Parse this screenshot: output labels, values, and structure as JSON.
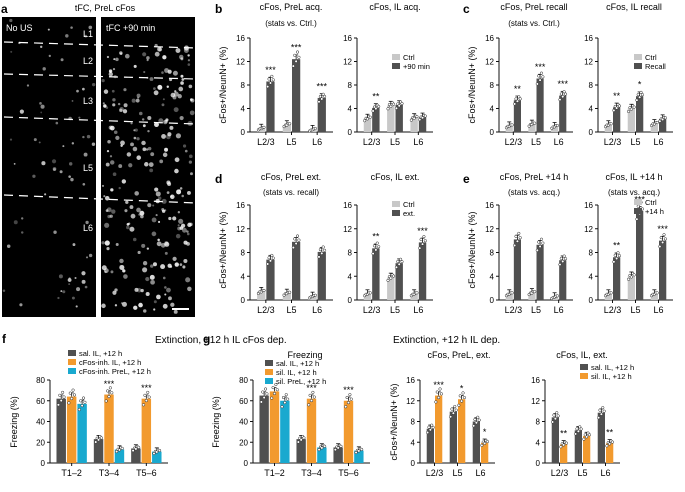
{
  "colors": {
    "dark": "#505050",
    "light": "#c8c8c8",
    "orange": "#f29a2e",
    "cyan": "#19a9cf",
    "axis": "#111111"
  },
  "panel_a": {
    "letter": "a",
    "title": "tFC, PreL cFos",
    "left_label": "No US",
    "right_label": "tFC +90 min",
    "layers": [
      "L1",
      "L2",
      "L3",
      "L5",
      "L6"
    ]
  },
  "row_texts": {
    "f_title": "Extinction, +12 h IL cFos dep.",
    "g_title": "Extinction, +12 h IL dep.",
    "freezing_subtitle": "Freezing"
  },
  "chart_data": [
    {
      "id": "b1",
      "letter": "b",
      "type": "bar",
      "title": "cFos, PreL acq.",
      "subtitle": "(stats vs. Ctrl.)",
      "ylabel": "cFos+/NeunN+ (%)",
      "ylim": [
        0,
        16
      ],
      "yticks": [
        0,
        4,
        8,
        12,
        16
      ],
      "categories": [
        "L2/3",
        "L5",
        "L6"
      ],
      "series": [
        {
          "name": "Ctrl",
          "color": "light",
          "values": [
            0.6,
            1.2,
            0.4
          ]
        },
        {
          "name": "+90 min",
          "color": "dark",
          "values": [
            8.6,
            12.4,
            5.8
          ]
        }
      ],
      "stars": [
        {
          "cat": 0,
          "series": 1,
          "text": "***"
        },
        {
          "cat": 1,
          "series": 1,
          "text": "***"
        },
        {
          "cat": 2,
          "series": 1,
          "text": "***"
        }
      ]
    },
    {
      "id": "b2",
      "type": "bar",
      "title": "cFos, IL acq.",
      "ylim": [
        0,
        16
      ],
      "yticks": [
        0,
        4,
        8,
        12,
        16
      ],
      "categories": [
        "L2/3",
        "L5",
        "L6"
      ],
      "series": [
        {
          "name": "Ctrl",
          "color": "light",
          "values": [
            2.3,
            4.5,
            2.4
          ]
        },
        {
          "name": "+90 min",
          "color": "dark",
          "values": [
            4.1,
            4.6,
            2.5
          ]
        }
      ],
      "legend": [
        "Ctrl",
        "+90 min"
      ],
      "stars": [
        {
          "cat": 0,
          "series": 1,
          "text": "**"
        }
      ]
    },
    {
      "id": "c1",
      "letter": "c",
      "type": "bar",
      "title": "cFos, PreL recall",
      "subtitle": "(stats vs. Ctrl.)",
      "ylabel": "cFos+/NeunN+ (%)",
      "ylim": [
        0,
        16
      ],
      "yticks": [
        0,
        4,
        8,
        12,
        16
      ],
      "categories": [
        "L2/3",
        "L5",
        "L6"
      ],
      "series": [
        {
          "name": "Ctrl",
          "color": "light",
          "values": [
            1.0,
            1.3,
            0.9
          ]
        },
        {
          "name": "Recall",
          "color": "dark",
          "values": [
            5.4,
            9.1,
            6.2
          ]
        }
      ],
      "stars": [
        {
          "cat": 0,
          "series": 1,
          "text": "**"
        },
        {
          "cat": 1,
          "series": 1,
          "text": "***"
        },
        {
          "cat": 2,
          "series": 1,
          "text": "***"
        }
      ]
    },
    {
      "id": "c2",
      "type": "bar",
      "title": "cFos, IL recall",
      "ylim": [
        0,
        16
      ],
      "yticks": [
        0,
        4,
        8,
        12,
        16
      ],
      "categories": [
        "L2/3",
        "L5",
        "L6"
      ],
      "series": [
        {
          "name": "Ctrl",
          "color": "light",
          "values": [
            1.2,
            4.0,
            1.4
          ]
        },
        {
          "name": "Recall",
          "color": "dark",
          "values": [
            4.2,
            6.1,
            2.2
          ]
        }
      ],
      "legend": [
        "Ctrl",
        "Recall"
      ],
      "stars": [
        {
          "cat": 0,
          "series": 1,
          "text": "**"
        },
        {
          "cat": 1,
          "series": 1,
          "text": "*"
        }
      ]
    },
    {
      "id": "d1",
      "letter": "d",
      "type": "bar",
      "title": "cFos, PreL ext.",
      "subtitle": "(stats vs. recall)",
      "ylabel": "cFos+/NeunN+ (%)",
      "ylim": [
        0,
        16
      ],
      "yticks": [
        0,
        4,
        8,
        12,
        16
      ],
      "categories": [
        "L2/3",
        "L5",
        "L6"
      ],
      "series": [
        {
          "name": "Ctrl",
          "color": "light",
          "values": [
            1.4,
            1.1,
            0.6
          ]
        },
        {
          "name": "ext.",
          "color": "dark",
          "values": [
            6.8,
            9.8,
            8.1
          ]
        }
      ],
      "stars": []
    },
    {
      "id": "d2",
      "type": "bar",
      "title": "cFos, IL ext.",
      "ylim": [
        0,
        16
      ],
      "yticks": [
        0,
        4,
        8,
        12,
        16
      ],
      "categories": [
        "L2/3",
        "L5",
        "L6"
      ],
      "series": [
        {
          "name": "Ctrl",
          "color": "light",
          "values": [
            1.0,
            3.8,
            1.0
          ]
        },
        {
          "name": "ext.",
          "color": "dark",
          "values": [
            8.7,
            6.2,
            9.7
          ]
        }
      ],
      "legend": [
        "Ctrl",
        "ext."
      ],
      "stars": [
        {
          "cat": 0,
          "series": 1,
          "text": "**"
        },
        {
          "cat": 2,
          "series": 1,
          "text": "***"
        }
      ]
    },
    {
      "id": "e1",
      "letter": "e",
      "type": "bar",
      "title": "cFos, PreL +14 h",
      "subtitle": "(stats vs. acq.)",
      "ylabel": "cFos+/NeunN+ (%)",
      "ylim": [
        0,
        16
      ],
      "yticks": [
        0,
        4,
        8,
        12,
        16
      ],
      "categories": [
        "L2/3",
        "L5",
        "L6"
      ],
      "series": [
        {
          "name": "Ctrl",
          "color": "light",
          "values": [
            1.0,
            1.2,
            0.5
          ]
        },
        {
          "name": "+14 h",
          "color": "dark",
          "values": [
            10.2,
            9.3,
            6.7
          ]
        }
      ],
      "stars": []
    },
    {
      "id": "e2",
      "type": "bar",
      "title": "cFos, IL +14 h",
      "subtitle": "(stats vs. acq.)",
      "ylim": [
        0,
        16
      ],
      "yticks": [
        0,
        4,
        8,
        12,
        16
      ],
      "categories": [
        "L2/3",
        "L5",
        "L6"
      ],
      "series": [
        {
          "name": "Ctrl",
          "color": "light",
          "values": [
            1.0,
            4.0,
            1.0
          ]
        },
        {
          "name": "+14 h",
          "color": "dark",
          "values": [
            7.2,
            15.0,
            10.0
          ]
        }
      ],
      "legend": [
        "Ctrl",
        "+14 h"
      ],
      "stars": [
        {
          "cat": 0,
          "series": 1,
          "text": "**"
        },
        {
          "cat": 1,
          "series": 1,
          "text": "***"
        },
        {
          "cat": 2,
          "series": 1,
          "text": "***"
        }
      ]
    },
    {
      "id": "f",
      "letter": "f",
      "type": "bar",
      "ylabel": "Freezing (%)",
      "ylim": [
        0,
        80
      ],
      "yticks": [
        0,
        20,
        40,
        60,
        80
      ],
      "categories": [
        "T1–2",
        "T3–4",
        "T5–6"
      ],
      "series": [
        {
          "name": "sal. IL, +12 h",
          "color": "dark",
          "values": [
            62,
            23,
            14
          ]
        },
        {
          "name": "cFos-inh. IL, +12 h",
          "color": "orange",
          "values": [
            64,
            66,
            62
          ]
        },
        {
          "name": "cFos-inh. PreL, +12 h",
          "color": "cyan",
          "values": [
            57,
            13,
            11
          ]
        }
      ],
      "legend": [
        "sal. IL, +12 h",
        "cFos-inh. IL, +12 h",
        "cFos-inh. PreL, +12 h"
      ],
      "stars": [
        {
          "cat": 1,
          "series": 1,
          "text": "***"
        },
        {
          "cat": 2,
          "series": 1,
          "text": "***"
        }
      ]
    },
    {
      "id": "g1",
      "letter": "g",
      "type": "bar",
      "ylabel": "Freezing (%)",
      "ylim": [
        0,
        80
      ],
      "yticks": [
        0,
        20,
        40,
        60,
        80
      ],
      "categories": [
        "T1–2",
        "T3–4",
        "T5–6"
      ],
      "series": [
        {
          "name": "sal. IL, +12 h",
          "color": "dark",
          "values": [
            65,
            23,
            15
          ]
        },
        {
          "name": "sil. IL, +12 h",
          "color": "orange",
          "values": [
            69,
            62,
            60
          ]
        },
        {
          "name": "sil. PreL, +12 h",
          "color": "cyan",
          "values": [
            60,
            15,
            12
          ]
        }
      ],
      "legend": [
        "sal. IL, +12 h",
        "sil. IL, +12 h",
        "sil. PreL, +12 h"
      ],
      "stars": [
        {
          "cat": 1,
          "series": 1,
          "text": "***"
        },
        {
          "cat": 2,
          "series": 1,
          "text": "***"
        }
      ]
    },
    {
      "id": "g2",
      "type": "bar",
      "title": "cFos, PreL, ext.",
      "ylabel": "cFos+/NeunN+ (%)",
      "ylim": [
        0,
        16
      ],
      "yticks": [
        0,
        4,
        8,
        12,
        16
      ],
      "categories": [
        "L2/3",
        "L5",
        "L6"
      ],
      "series": [
        {
          "name": "sal. IL, +12 h",
          "color": "dark",
          "values": [
            6.6,
            9.9,
            8.0
          ]
        },
        {
          "name": "sil. IL, +12 h",
          "color": "orange",
          "values": [
            13.0,
            12.3,
            3.9
          ]
        }
      ],
      "stars": [
        {
          "cat": 0,
          "series": 1,
          "text": "***"
        },
        {
          "cat": 1,
          "series": 1,
          "text": "*"
        },
        {
          "cat": 2,
          "series": 1,
          "text": "*"
        }
      ]
    },
    {
      "id": "g3",
      "type": "bar",
      "title": "cFos, IL, ext.",
      "ylim": [
        0,
        16
      ],
      "yticks": [
        0,
        4,
        8,
        12,
        16
      ],
      "categories": [
        "L2/3",
        "L5",
        "L6"
      ],
      "series": [
        {
          "name": "sal. IL, +12 h",
          "color": "dark",
          "values": [
            8.8,
            6.3,
            9.7
          ]
        },
        {
          "name": "sil. IL, +12 h",
          "color": "orange",
          "values": [
            3.6,
            5.2,
            3.8
          ]
        }
      ],
      "legend": [
        "sal. IL, +12 h",
        "sil. IL, +12 h"
      ],
      "stars": [
        {
          "cat": 0,
          "series": 1,
          "text": "**"
        },
        {
          "cat": 2,
          "series": 1,
          "text": "**"
        }
      ]
    }
  ]
}
